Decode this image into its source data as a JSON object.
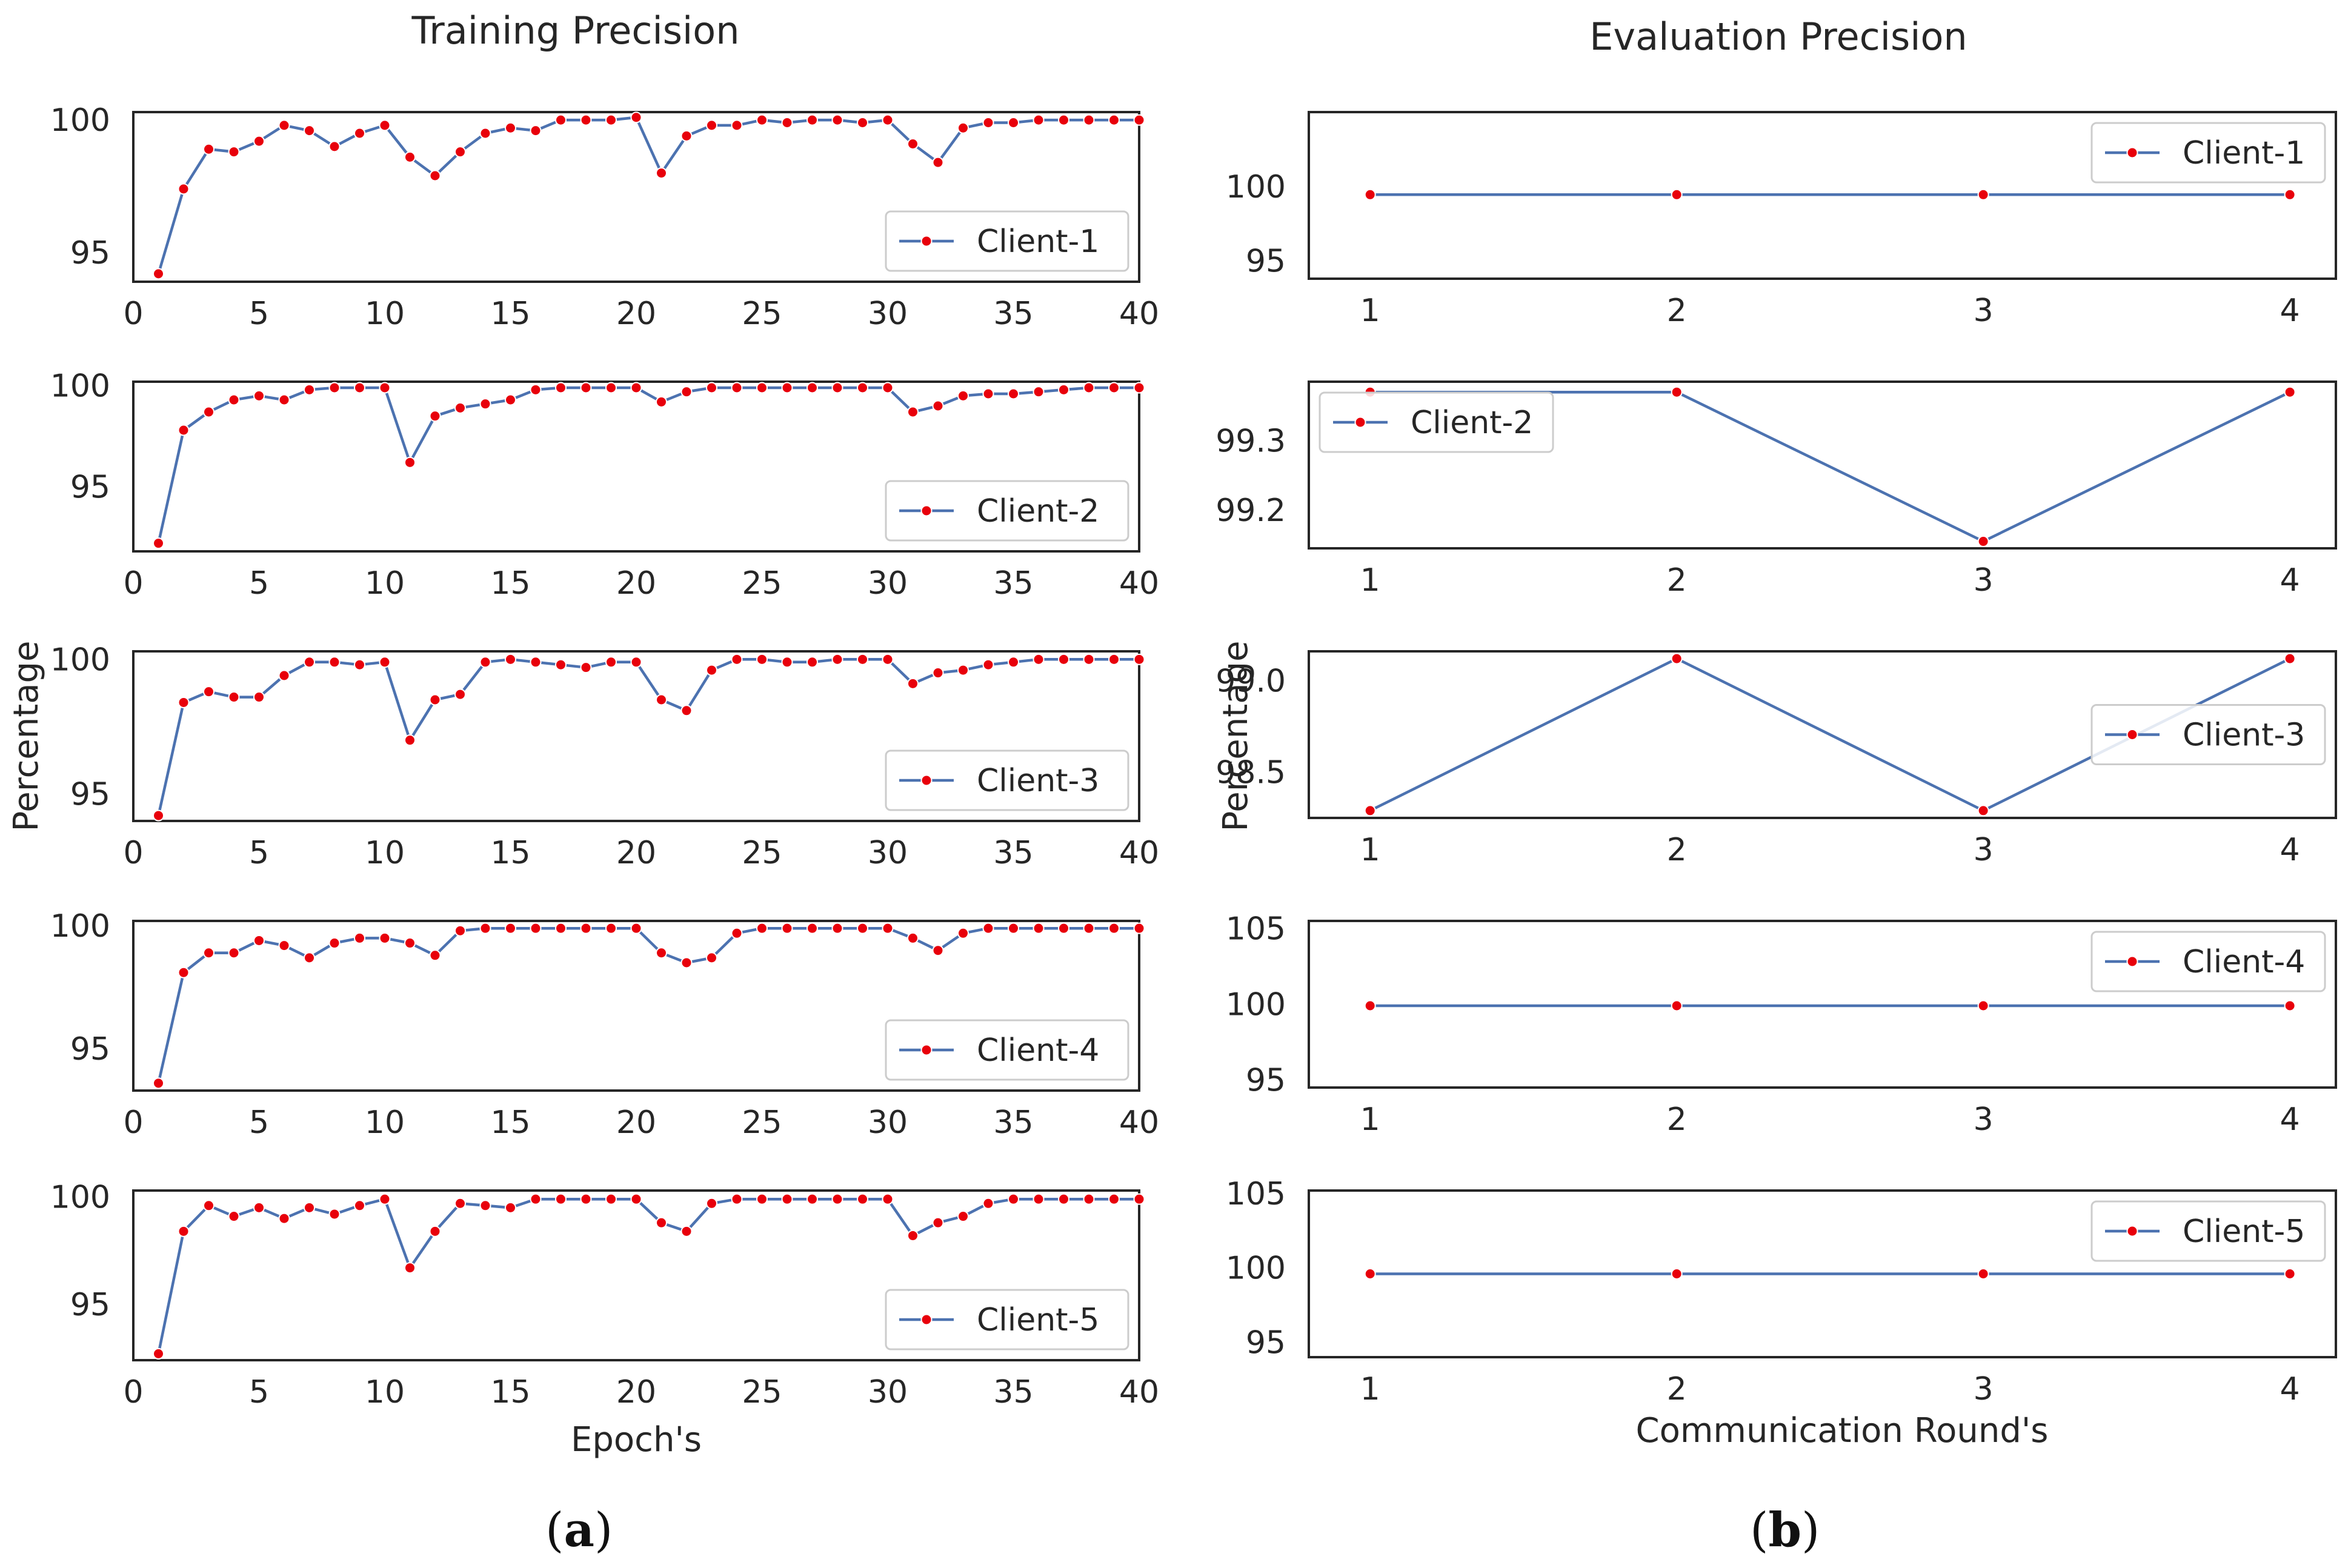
{
  "panel_labels": {
    "a_open": "(",
    "a_letter": "a",
    "a_close": ")",
    "b_open": "(",
    "b_letter": "b",
    "b_close": ")"
  },
  "colors": {
    "line": "#4c72b0",
    "marker": "#e8000b",
    "frame": "#262626",
    "text": "#262626"
  },
  "chart_data": [
    {
      "type": "line",
      "panel": "a",
      "title": "Training Precision",
      "xlabel": "Epoch's",
      "ylabel": "Percentage",
      "xlim": [
        0,
        40
      ],
      "xticks": [
        0,
        5,
        10,
        15,
        20,
        25,
        30,
        35,
        40
      ],
      "x": [
        1,
        2,
        3,
        4,
        5,
        6,
        7,
        8,
        9,
        10,
        11,
        12,
        13,
        14,
        15,
        16,
        17,
        18,
        19,
        20,
        21,
        22,
        23,
        24,
        25,
        26,
        27,
        28,
        29,
        30,
        31,
        32,
        33,
        34,
        35,
        36,
        37,
        38,
        39,
        40
      ],
      "subplots": [
        {
          "legend": "Client-1",
          "legend_loc": "lower right",
          "ylim": [
            93.9,
            100.3
          ],
          "yticks": [
            95,
            100
          ],
          "values": [
            94.2,
            97.4,
            98.9,
            98.8,
            99.2,
            99.8,
            99.6,
            99.0,
            99.5,
            99.8,
            98.6,
            97.9,
            98.8,
            99.5,
            99.7,
            99.6,
            100.0,
            100.0,
            100.0,
            100.1,
            98.0,
            99.4,
            99.8,
            99.8,
            100.0,
            99.9,
            100.0,
            100.0,
            99.9,
            100.0,
            99.1,
            98.4,
            99.7,
            99.9,
            99.9,
            100.0,
            100.0,
            100.0,
            100.0,
            100.0
          ]
        },
        {
          "legend": "Client-2",
          "legend_loc": "lower right",
          "ylim": [
            91.8,
            100.2
          ],
          "yticks": [
            95,
            100
          ],
          "values": [
            92.2,
            97.8,
            98.7,
            99.3,
            99.5,
            99.3,
            99.8,
            99.9,
            99.9,
            99.9,
            96.2,
            98.5,
            98.9,
            99.1,
            99.3,
            99.8,
            99.9,
            99.9,
            99.9,
            99.9,
            99.2,
            99.7,
            99.9,
            99.9,
            99.9,
            99.9,
            99.9,
            99.9,
            99.9,
            99.9,
            98.7,
            99.0,
            99.5,
            99.6,
            99.6,
            99.7,
            99.8,
            99.9,
            99.9,
            99.9
          ]
        },
        {
          "legend": "Client-3",
          "legend_loc": "lower right",
          "ylim": [
            94.0,
            100.3
          ],
          "yticks": [
            95,
            100
          ],
          "values": [
            94.2,
            98.4,
            98.8,
            98.6,
            98.6,
            99.4,
            99.9,
            99.9,
            99.8,
            99.9,
            97.0,
            98.5,
            98.7,
            99.9,
            100.0,
            99.9,
            99.8,
            99.7,
            99.9,
            99.9,
            98.5,
            98.1,
            99.6,
            100.0,
            100.0,
            99.9,
            99.9,
            100.0,
            100.0,
            100.0,
            99.1,
            99.5,
            99.6,
            99.8,
            99.9,
            100.0,
            100.0,
            100.0,
            100.0,
            100.0
          ]
        },
        {
          "legend": "Client-4",
          "legend_loc": "lower right",
          "ylim": [
            93.3,
            100.2
          ],
          "yticks": [
            95,
            100
          ],
          "values": [
            93.6,
            98.1,
            98.9,
            98.9,
            99.4,
            99.2,
            98.7,
            99.3,
            99.5,
            99.5,
            99.3,
            98.8,
            99.8,
            99.9,
            99.9,
            99.9,
            99.9,
            99.9,
            99.9,
            99.9,
            98.9,
            98.5,
            98.7,
            99.7,
            99.9,
            99.9,
            99.9,
            99.9,
            99.9,
            99.9,
            99.5,
            99.0,
            99.7,
            99.9,
            99.9,
            99.9,
            99.9,
            99.9,
            99.9,
            99.9
          ]
        },
        {
          "legend": "Client-5",
          "legend_loc": "lower right",
          "ylim": [
            92.4,
            100.3
          ],
          "yticks": [
            95,
            100
          ],
          "values": [
            92.7,
            98.4,
            99.6,
            99.1,
            99.5,
            99.0,
            99.5,
            99.2,
            99.6,
            99.9,
            96.7,
            98.4,
            99.7,
            99.6,
            99.5,
            99.9,
            99.9,
            99.9,
            99.9,
            99.9,
            98.8,
            98.4,
            99.7,
            99.9,
            99.9,
            99.9,
            99.9,
            99.9,
            99.9,
            99.9,
            98.2,
            98.8,
            99.1,
            99.7,
            99.9,
            99.9,
            99.9,
            99.9,
            99.9,
            99.9
          ]
        }
      ]
    },
    {
      "type": "line",
      "panel": "b",
      "title": "Evaluation Precision",
      "xlabel": "Communication Round's",
      "ylabel": "Percentage",
      "xlim": [
        0.8,
        4.15
      ],
      "xticks": [
        1,
        2,
        3,
        4
      ],
      "x": [
        1,
        2,
        3,
        4
      ],
      "subplots": [
        {
          "legend": "Client-1",
          "legend_loc": "upper right",
          "ylim": [
            93.8,
            105.0
          ],
          "yticks": [
            95,
            100
          ],
          "tick_labels": [
            "95",
            "100"
          ],
          "values": [
            99.45,
            99.45,
            99.45,
            99.45
          ]
        },
        {
          "legend": "Client-2",
          "legend_loc": "upper left",
          "ylim": [
            99.145,
            99.385
          ],
          "yticks": [
            99.2,
            99.3
          ],
          "tick_labels": [
            "99.2",
            "99.3"
          ],
          "values": [
            99.37,
            99.37,
            99.155,
            99.37
          ]
        },
        {
          "legend": "Client-3",
          "legend_loc": "right",
          "ylim": [
            98.25,
            99.16
          ],
          "yticks": [
            98.5,
            99.0
          ],
          "tick_labels": [
            "98.5",
            "99.0"
          ],
          "values": [
            98.29,
            99.12,
            98.29,
            99.12
          ]
        },
        {
          "legend": "Client-4",
          "legend_loc": "upper right",
          "ylim": [
            94.5,
            105.5
          ],
          "yticks": [
            95,
            100,
            105
          ],
          "tick_labels": [
            "95",
            "100",
            "105"
          ],
          "values": [
            99.9,
            99.9,
            99.9,
            99.9
          ]
        },
        {
          "legend": "Client-5",
          "legend_loc": "upper right",
          "ylim": [
            94.0,
            105.2
          ],
          "yticks": [
            95,
            100,
            105
          ],
          "tick_labels": [
            "95",
            "100",
            "105"
          ],
          "values": [
            99.6,
            99.6,
            99.6,
            99.6
          ]
        }
      ]
    }
  ]
}
